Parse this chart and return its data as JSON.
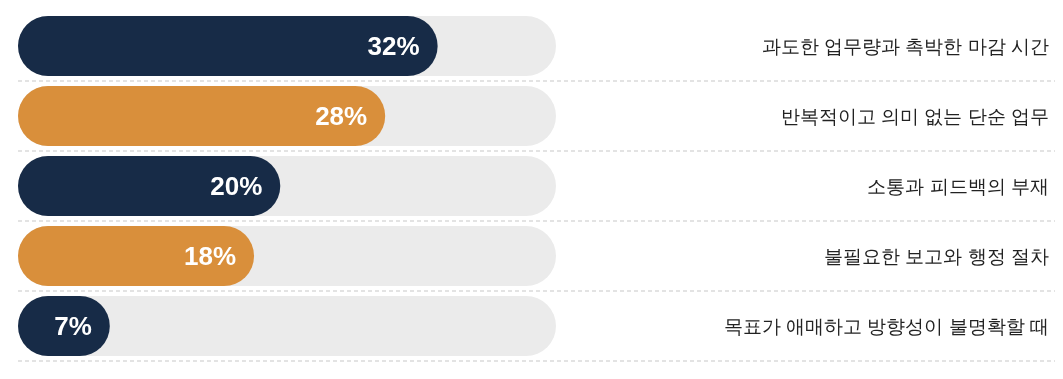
{
  "chart_data": {
    "type": "bar",
    "orientation": "horizontal",
    "categories": [
      "과도한 업무량과 촉박한 마감 시간",
      "반복적이고 의미 없는 단순 업무",
      "소통과 피드백의 부재",
      "불필요한 보고와 행정 절차",
      "목표가 애매하고 방향성이 불명확할 때"
    ],
    "values": [
      32,
      28,
      20,
      18,
      7
    ],
    "colors": [
      "#172b47",
      "#d98f3b",
      "#172b47",
      "#d98f3b",
      "#172b47"
    ],
    "value_labels": [
      "32%",
      "28%",
      "20%",
      "18%",
      "7%"
    ]
  }
}
